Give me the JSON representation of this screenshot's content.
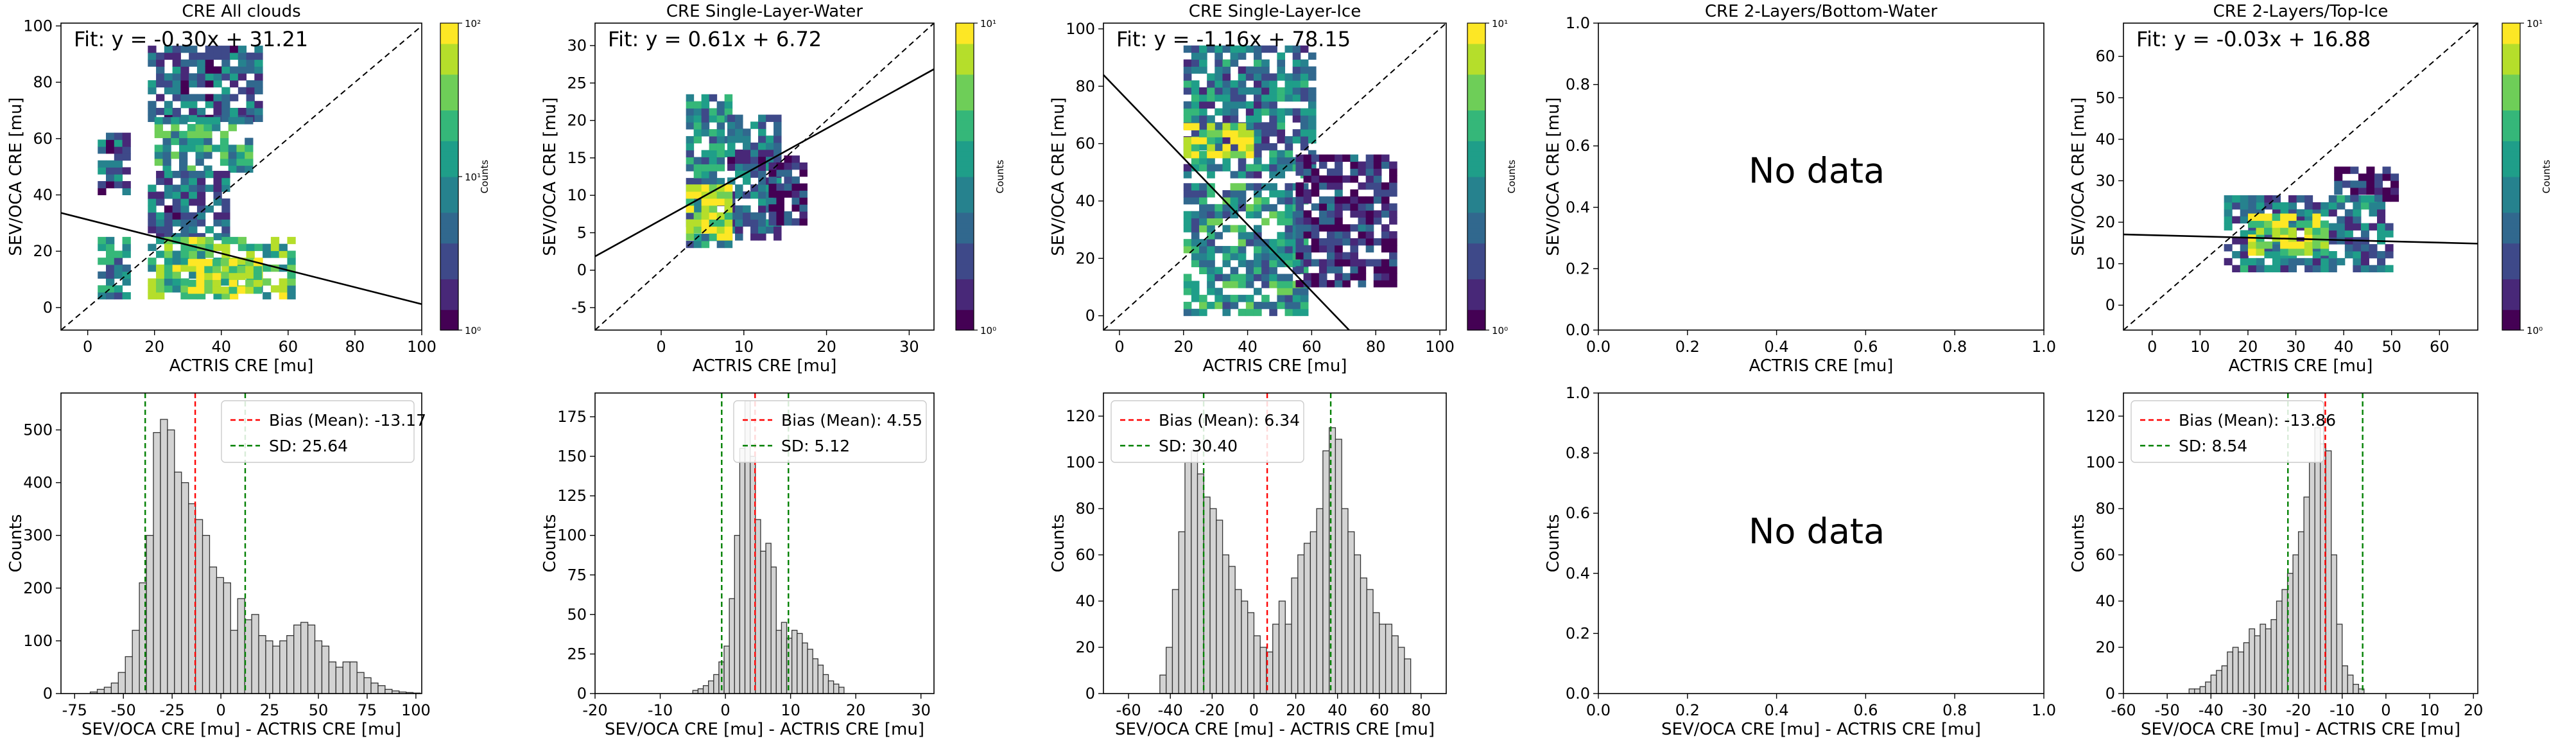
{
  "colors": {
    "fit_line": "#000000",
    "identity_line": "#000000",
    "bias_line": "#ff0000",
    "sd_line": "#008000",
    "hist_fill": "#d3d3d3",
    "hist_edge": "#333333",
    "viridis": [
      "#440154",
      "#482878",
      "#3e4989",
      "#31688e",
      "#26828e",
      "#1f9e89",
      "#35b779",
      "#6ece58",
      "#b5de2b",
      "#fde725"
    ]
  },
  "chart_data": [
    {
      "type": "heatmap",
      "title": "CRE All clouds",
      "xlabel": "ACTRIS CRE [mu]",
      "ylabel": "SEV/OCA CRE [mu]",
      "xlim": [
        -8,
        100
      ],
      "ylim": [
        -8,
        101
      ],
      "xticks": [
        0,
        20,
        40,
        60,
        80,
        100
      ],
      "yticks": [
        0,
        20,
        40,
        60,
        80,
        100
      ],
      "fit_label": "Fit: y = -0.30x + 31.21",
      "fit": {
        "slope": -0.3,
        "intercept": 31.21
      },
      "identity": true,
      "colorbar": {
        "label": "Counts",
        "ticks": [
          "10⁰",
          "10¹",
          "10²"
        ]
      },
      "regions": [
        {
          "x": [
            3,
            12
          ],
          "y": [
            3,
            24
          ],
          "level": 0.45
        },
        {
          "x": [
            3,
            11
          ],
          "y": [
            40,
            60
          ],
          "level": 0.25
        },
        {
          "x": [
            18,
            52
          ],
          "y": [
            66,
            92
          ],
          "level": 0.3
        },
        {
          "x": [
            20,
            48
          ],
          "y": [
            48,
            66
          ],
          "level": 0.55
        },
        {
          "x": [
            18,
            42
          ],
          "y": [
            24,
            48
          ],
          "level": 0.3
        },
        {
          "x": [
            18,
            60
          ],
          "y": [
            3,
            24
          ],
          "level": 0.7
        },
        {
          "x": [
            30,
            52
          ],
          "y": [
            5,
            15
          ],
          "level": 0.95
        }
      ]
    },
    {
      "type": "heatmap",
      "title": "CRE Single-Layer-Water",
      "xlabel": "ACTRIS CRE [mu]",
      "ylabel": "SEV/OCA CRE [mu]",
      "xlim": [
        -8,
        33
      ],
      "ylim": [
        -8,
        33
      ],
      "xticks": [
        0,
        10,
        20,
        30
      ],
      "yticks": [
        -5,
        0,
        5,
        10,
        15,
        20,
        25,
        30
      ],
      "fit_label": "Fit: y = 0.61x + 6.72",
      "fit": {
        "slope": 0.61,
        "intercept": 6.72
      },
      "identity": true,
      "colorbar": {
        "label": "Counts",
        "ticks": [
          "10⁰",
          "10¹"
        ]
      },
      "regions": [
        {
          "x": [
            3,
            8
          ],
          "y": [
            3,
            23
          ],
          "level": 0.45
        },
        {
          "x": [
            8,
            14
          ],
          "y": [
            4,
            20
          ],
          "level": 0.3
        },
        {
          "x": [
            3,
            8
          ],
          "y": [
            4,
            11
          ],
          "level": 0.95
        },
        {
          "x": [
            13,
            17
          ],
          "y": [
            6,
            15
          ],
          "level": 0.1
        }
      ]
    },
    {
      "type": "heatmap",
      "title": "CRE Single-Layer-Ice",
      "xlabel": "ACTRIS CRE [mu]",
      "ylabel": "SEV/OCA CRE [mu]",
      "xlim": [
        -5,
        102
      ],
      "ylim": [
        -5,
        102
      ],
      "xticks": [
        0,
        20,
        40,
        60,
        80,
        100
      ],
      "yticks": [
        0,
        20,
        40,
        60,
        80,
        100
      ],
      "fit_label": "Fit: y = -1.16x + 78.15",
      "fit": {
        "slope": -1.16,
        "intercept": 78.15
      },
      "identity": true,
      "colorbar": {
        "label": "Counts",
        "ticks": [
          "10⁰",
          "10¹"
        ]
      },
      "regions": [
        {
          "x": [
            20,
            60
          ],
          "y": [
            48,
            92
          ],
          "level": 0.4
        },
        {
          "x": [
            20,
            40
          ],
          "y": [
            55,
            65
          ],
          "level": 0.9
        },
        {
          "x": [
            20,
            58
          ],
          "y": [
            0,
            45
          ],
          "level": 0.5
        },
        {
          "x": [
            55,
            85
          ],
          "y": [
            10,
            55
          ],
          "level": 0.12
        }
      ]
    },
    {
      "type": "heatmap",
      "title": "CRE 2-Layers/Bottom-Water",
      "xlabel": "ACTRIS CRE [mu]",
      "ylabel": "SEV/OCA CRE [mu]",
      "xlim": [
        0,
        1
      ],
      "ylim": [
        0,
        1
      ],
      "xticks": [
        "0.0",
        "0.2",
        "0.4",
        "0.6",
        "0.8",
        "1.0"
      ],
      "yticks": [
        "0.0",
        "0.2",
        "0.4",
        "0.6",
        "0.8",
        "1.0"
      ],
      "annotation": "No data",
      "identity": false
    },
    {
      "type": "heatmap",
      "title": "CRE 2-Layers/Top-Ice",
      "xlabel": "ACTRIS CRE [mu]",
      "ylabel": "SEV/OCA CRE [mu]",
      "xlim": [
        -6,
        68
      ],
      "ylim": [
        -6,
        68
      ],
      "xticks": [
        0,
        10,
        20,
        30,
        40,
        50,
        60
      ],
      "yticks": [
        0,
        10,
        20,
        30,
        40,
        50,
        60
      ],
      "fit_label": "Fit: y = -0.03x + 16.88",
      "fit": {
        "slope": -0.03,
        "intercept": 16.88
      },
      "identity": true,
      "colorbar": {
        "label": "Counts",
        "ticks": [
          "10⁰",
          "10¹"
        ]
      },
      "regions": [
        {
          "x": [
            15,
            50
          ],
          "y": [
            8,
            26
          ],
          "level": 0.35
        },
        {
          "x": [
            20,
            36
          ],
          "y": [
            12,
            21
          ],
          "level": 0.9
        },
        {
          "x": [
            38,
            50
          ],
          "y": [
            25,
            33
          ],
          "level": 0.1
        }
      ]
    },
    {
      "type": "bar",
      "title": "",
      "xlabel": "SEV/OCA CRE [mu] - ACTRIS CRE [mu]",
      "ylabel": "Counts",
      "xlim": [
        -82,
        103
      ],
      "ylim": [
        0,
        570
      ],
      "xticks": [
        -75,
        -50,
        -25,
        0,
        25,
        50,
        75,
        100
      ],
      "yticks": [
        0,
        100,
        200,
        300,
        400,
        500
      ],
      "bin_start": -67,
      "bin_width": 3.6,
      "counts": [
        3,
        8,
        12,
        20,
        40,
        70,
        120,
        210,
        300,
        495,
        520,
        500,
        420,
        400,
        360,
        330,
        300,
        240,
        220,
        210,
        120,
        180,
        140,
        150,
        110,
        100,
        90,
        100,
        110,
        130,
        135,
        130,
        100,
        90,
        60,
        50,
        60,
        60,
        40,
        30,
        20,
        15,
        8,
        5,
        3,
        2,
        1
      ],
      "legend": [
        {
          "label": "Bias (Mean): -13.17",
          "kind": "bias"
        },
        {
          "label": "SD: 25.64",
          "kind": "sd"
        }
      ],
      "bias": -13.17,
      "sd_lines": [
        -38.81,
        12.47
      ]
    },
    {
      "type": "bar",
      "title": "",
      "xlabel": "SEV/OCA CRE [mu] - ACTRIS CRE [mu]",
      "ylabel": "Counts",
      "xlim": [
        -20,
        32
      ],
      "ylim": [
        0,
        190
      ],
      "xticks": [
        -20,
        -10,
        0,
        10,
        20,
        30
      ],
      "yticks": [
        0,
        25,
        50,
        75,
        100,
        125,
        150,
        175
      ],
      "bin_start": -5,
      "bin_width": 0.8,
      "counts": [
        2,
        3,
        5,
        8,
        12,
        20,
        30,
        60,
        100,
        155,
        185,
        150,
        110,
        90,
        95,
        80,
        40,
        45,
        35,
        40,
        38,
        32,
        28,
        22,
        18,
        12,
        8,
        6,
        4
      ],
      "legend": [
        {
          "label": "Bias (Mean): 4.55",
          "kind": "bias"
        },
        {
          "label": "SD: 5.12",
          "kind": "sd"
        }
      ],
      "bias": 4.55,
      "sd_lines": [
        -0.57,
        9.67
      ]
    },
    {
      "type": "bar",
      "title": "",
      "xlabel": "SEV/OCA CRE [mu] - ACTRIS CRE [mu]",
      "ylabel": "Counts",
      "xlim": [
        -72,
        92
      ],
      "ylim": [
        0,
        130
      ],
      "xticks": [
        -60,
        -40,
        -20,
        0,
        20,
        40,
        60,
        80
      ],
      "yticks": [
        0,
        20,
        40,
        60,
        80,
        100,
        120
      ],
      "bin_start": -45,
      "bin_width": 3,
      "counts": [
        8,
        20,
        45,
        70,
        100,
        105,
        95,
        85,
        80,
        75,
        60,
        55,
        45,
        40,
        35,
        25,
        20,
        18,
        30,
        40,
        30,
        50,
        60,
        65,
        70,
        80,
        105,
        115,
        110,
        80,
        70,
        60,
        50,
        45,
        35,
        30,
        30,
        25,
        20,
        15
      ],
      "legend": [
        {
          "label": "Bias (Mean): 6.34",
          "kind": "bias"
        },
        {
          "label": "SD: 30.40",
          "kind": "sd"
        }
      ],
      "bias": 6.34,
      "sd_lines": [
        -24.06,
        36.74
      ]
    },
    {
      "type": "bar",
      "title": "",
      "xlabel": "SEV/OCA CRE [mu] - ACTRIS CRE [mu]",
      "ylabel": "Counts",
      "xlim": [
        0,
        1
      ],
      "ylim": [
        0,
        1
      ],
      "xticks": [
        "0.0",
        "0.2",
        "0.4",
        "0.6",
        "0.8",
        "1.0"
      ],
      "yticks": [
        "0.0",
        "0.2",
        "0.4",
        "0.6",
        "0.8",
        "1.0"
      ],
      "annotation": "No data"
    },
    {
      "type": "bar",
      "title": "",
      "xlabel": "SEV/OCA CRE [mu] - ACTRIS CRE [mu]",
      "ylabel": "Counts",
      "xlim": [
        -60,
        21
      ],
      "ylim": [
        0,
        130
      ],
      "xticks": [
        -60,
        -50,
        -40,
        -30,
        -20,
        -10,
        0,
        10,
        20
      ],
      "yticks": [
        0,
        20,
        40,
        60,
        80,
        100,
        120
      ],
      "bin_start": -45,
      "bin_width": 1.25,
      "counts": [
        2,
        2,
        3,
        5,
        8,
        10,
        12,
        18,
        20,
        18,
        22,
        28,
        25,
        30,
        28,
        32,
        40,
        45,
        52,
        60,
        70,
        85,
        100,
        115,
        108,
        105,
        60,
        30,
        12,
        8,
        4,
        2
      ],
      "legend": [
        {
          "label": "Bias (Mean): -13.86",
          "kind": "bias"
        },
        {
          "label": "SD: 8.54",
          "kind": "sd"
        }
      ],
      "bias": -13.86,
      "sd_lines": [
        -22.4,
        -5.32
      ]
    }
  ]
}
